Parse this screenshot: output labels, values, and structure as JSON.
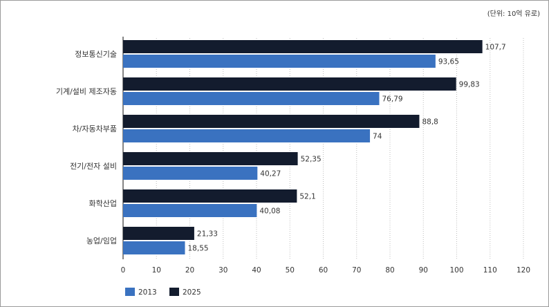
{
  "chart_data": {
    "type": "bar",
    "orientation": "horizontal",
    "unit_label": "(단위: 10억 유로)",
    "categories": [
      "정보통신기술",
      "기계/설비 제조자동",
      "차/자동차부품",
      "전기/전자 설비",
      "화학산업",
      "농업/임업"
    ],
    "series": [
      {
        "name": "2025",
        "color": "#131c2e",
        "values": [
          107.7,
          99.83,
          88.8,
          52.35,
          52.1,
          21.33
        ],
        "labels": [
          "107,7",
          "99,83",
          "88,8",
          "52,35",
          "52,1",
          "21,33"
        ]
      },
      {
        "name": "2013",
        "color": "#3a72c0",
        "values": [
          93.65,
          76.79,
          74,
          40.27,
          40.08,
          18.55
        ],
        "labels": [
          "93,65",
          "76,79",
          "74",
          "40,27",
          "40,08",
          "18,55"
        ]
      }
    ],
    "xlim": [
      0,
      120
    ],
    "xticks": [
      0,
      10,
      20,
      30,
      40,
      50,
      60,
      70,
      80,
      90,
      100,
      110,
      120
    ],
    "grid": "vertical-dotted",
    "legend": [
      {
        "name": "2013",
        "color": "#3a72c0"
      },
      {
        "name": "2025",
        "color": "#131c2e"
      }
    ],
    "legend_position": "bottom-left"
  }
}
